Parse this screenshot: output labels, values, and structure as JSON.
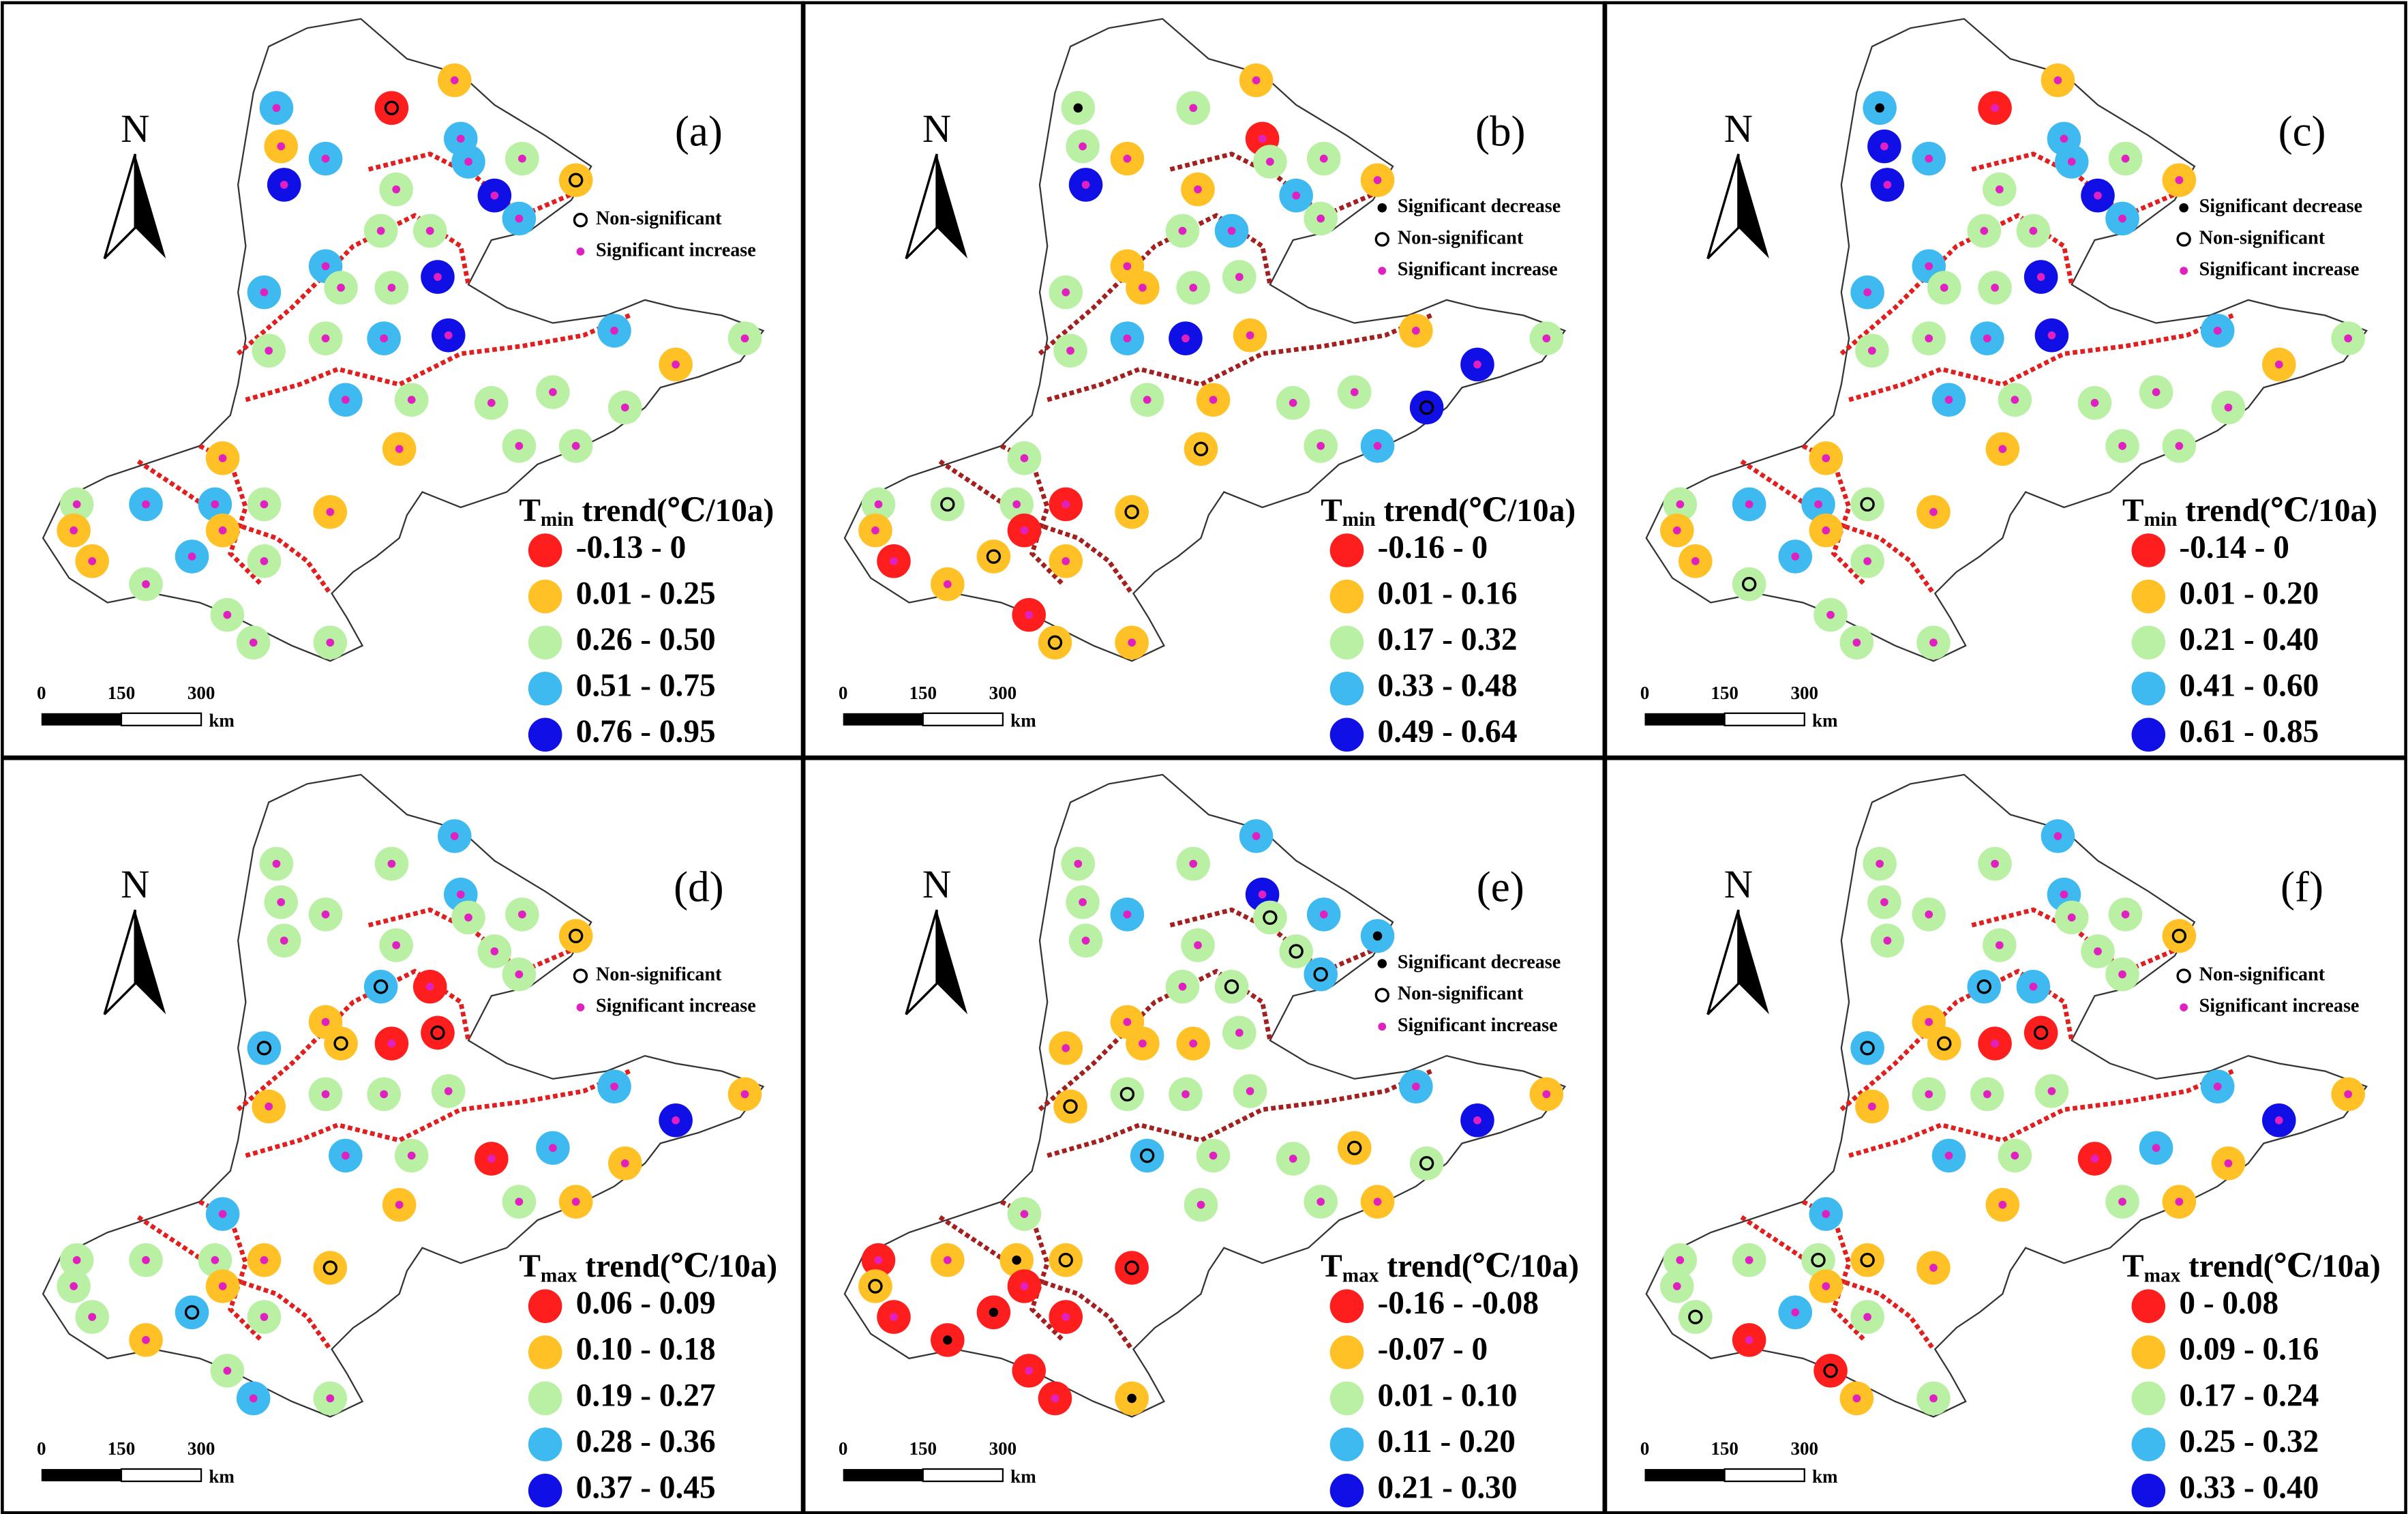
{
  "legend_colors": [
    "#ff1e1e",
    "#ffc125",
    "#b9f0a3",
    "#3fbaf0",
    "#0f0fe6"
  ],
  "panels": [
    {
      "label": "(a)",
      "north": "N",
      "legend": {
        "symbol": "T",
        "subscript": "min",
        "title": "trend(℃/10a)",
        "items": [
          "-0.13 - 0",
          "0.01 - 0.25",
          "0.26 - 0.50",
          "0.51 - 0.75",
          "0.76 - 0.95"
        ]
      },
      "significance": [
        "Non-significant",
        "Significant increase"
      ],
      "scale": {
        "ticks": [
          "0",
          "150",
          "300"
        ],
        "unit": "km"
      }
    },
    {
      "label": "(b)",
      "north": "N",
      "legend": {
        "symbol": "T",
        "subscript": "min",
        "title": "trend(℃/10a)",
        "items": [
          "-0.16 - 0",
          "0.01 - 0.16",
          "0.17 - 0.32",
          "0.33 - 0.48",
          "0.49 - 0.64"
        ]
      },
      "significance": [
        "Significant decrease",
        "Non-significant",
        "Significant increase"
      ],
      "scale": {
        "ticks": [
          "0",
          "150",
          "300"
        ],
        "unit": "km"
      }
    },
    {
      "label": "(c)",
      "north": "N",
      "legend": {
        "symbol": "T",
        "subscript": "min",
        "title": "trend(℃/10a)",
        "items": [
          "-0.14 - 0",
          "0.01 - 0.20",
          "0.21 - 0.40",
          "0.41 - 0.60",
          "0.61 - 0.85"
        ]
      },
      "significance": [
        "Significant decrease",
        "Non-significant",
        "Significant increase"
      ],
      "scale": {
        "ticks": [
          "0",
          "150",
          "300"
        ],
        "unit": "km"
      }
    },
    {
      "label": "(d)",
      "north": "N",
      "legend": {
        "symbol": "T",
        "subscript": "max",
        "title": "trend(℃/10a)",
        "items": [
          "0.06 - 0.09",
          "0.10 - 0.18",
          "0.19 - 0.27",
          "0.28 - 0.36",
          "0.37 - 0.45"
        ]
      },
      "significance": [
        "Non-significant",
        "Significant increase"
      ],
      "scale": {
        "ticks": [
          "0",
          "150",
          "300"
        ],
        "unit": "km"
      }
    },
    {
      "label": "(e)",
      "north": "N",
      "legend": {
        "symbol": "T",
        "subscript": "max",
        "title": "trend(℃/10a)",
        "items": [
          "-0.16 - -0.08",
          "-0.07 - 0",
          "0.01 - 0.10",
          "0.11 - 0.20",
          "0.21 - 0.30"
        ]
      },
      "significance": [
        "Significant decrease",
        "Non-significant",
        "Significant increase"
      ],
      "scale": {
        "ticks": [
          "0",
          "150",
          "300"
        ],
        "unit": "km"
      }
    },
    {
      "label": "(f)",
      "north": "N",
      "legend": {
        "symbol": "T",
        "subscript": "max",
        "title": "trend(℃/10a)",
        "items": [
          "0 - 0.08",
          "0.09 - 0.16",
          "0.17 - 0.24",
          "0.25 - 0.32",
          "0.33 - 0.40"
        ]
      },
      "significance": [
        "Non-significant",
        "Significant increase"
      ],
      "scale": {
        "ticks": [
          "0",
          "150",
          "300"
        ],
        "unit": "km"
      }
    }
  ]
}
